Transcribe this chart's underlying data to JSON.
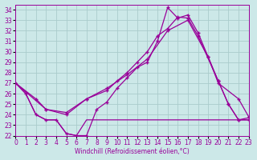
{
  "xlabel": "Windchill (Refroidissement éolien,°C)",
  "xlim": [
    0,
    23
  ],
  "ylim": [
    22,
    34.5
  ],
  "yticks": [
    22,
    23,
    24,
    25,
    26,
    27,
    28,
    29,
    30,
    31,
    32,
    33,
    34
  ],
  "xticks": [
    0,
    1,
    2,
    3,
    4,
    5,
    6,
    7,
    8,
    9,
    10,
    11,
    12,
    13,
    14,
    15,
    16,
    17,
    18,
    19,
    20,
    21,
    22,
    23
  ],
  "bg_color": "#cce8e8",
  "grid_color": "#aacccc",
  "line_color": "#990099",
  "line1_x": [
    0,
    1,
    2,
    3,
    4,
    5,
    6,
    7,
    8,
    9,
    10,
    11,
    12,
    13,
    14,
    15,
    16,
    17,
    18,
    19,
    20,
    21,
    22,
    23
  ],
  "line1_y": [
    27,
    26.0,
    24.0,
    23.5,
    23.5,
    22.2,
    22.0,
    22.0,
    24.5,
    25.2,
    26.5,
    27.5,
    28.5,
    29.0,
    31.0,
    34.2,
    33.2,
    33.5,
    31.8,
    29.5,
    27.2,
    25.0,
    23.5,
    23.5
  ],
  "line2_x": [
    0,
    1,
    2,
    3,
    4,
    5,
    6,
    7,
    8,
    9,
    10,
    11,
    12,
    13,
    14,
    15,
    16,
    17,
    18,
    19,
    20,
    21,
    22,
    23
  ],
  "line2_y": [
    27,
    26.0,
    24.0,
    23.5,
    23.5,
    22.2,
    22.0,
    23.5,
    23.5,
    23.5,
    23.5,
    23.5,
    23.5,
    23.5,
    23.5,
    23.5,
    23.5,
    23.5,
    23.5,
    23.5,
    23.5,
    23.5,
    23.5,
    23.5
  ],
  "line3_x": [
    0,
    2,
    3,
    5,
    7,
    9,
    10,
    11,
    12,
    13,
    14,
    15,
    16,
    17,
    18,
    20,
    21,
    22,
    23
  ],
  "line3_y": [
    27,
    25.5,
    24.5,
    24.0,
    25.5,
    26.3,
    27.2,
    28.0,
    29.0,
    30.0,
    31.5,
    32.2,
    33.3,
    33.2,
    31.5,
    27.2,
    25.0,
    23.5,
    23.7
  ],
  "line4_x": [
    0,
    3,
    5,
    7,
    9,
    11,
    13,
    15,
    17,
    19,
    20,
    22,
    23
  ],
  "line4_y": [
    27,
    24.5,
    24.2,
    25.5,
    26.5,
    27.8,
    29.3,
    32.0,
    33.0,
    29.5,
    27.0,
    25.5,
    23.8
  ]
}
